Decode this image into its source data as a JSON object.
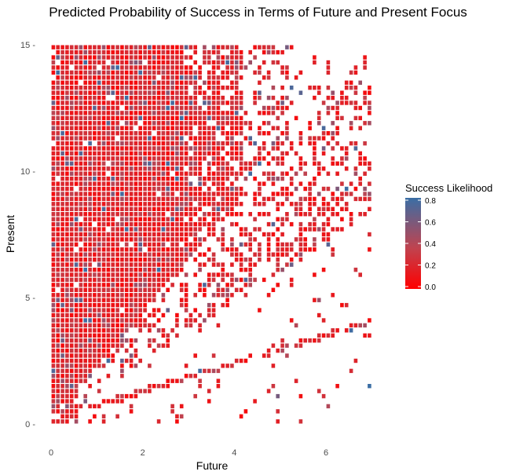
{
  "chart_data": {
    "type": "heatmap",
    "title": "Predicted Probability of Success in Terms of Future and Present Focus",
    "xlabel": "Future",
    "ylabel": "Present",
    "xlim": [
      -0.1,
      7.0
    ],
    "ylim": [
      -0.3,
      15.2
    ],
    "x_ticks": [
      0,
      2,
      4,
      6
    ],
    "y_ticks": [
      0,
      5,
      10,
      15
    ],
    "x_tick_labels": [
      "0",
      "2",
      "4",
      "6"
    ],
    "y_tick_labels": [
      "0 -",
      "5 -",
      "10 -",
      "15 -"
    ],
    "grid": false,
    "cell_width": 0.1,
    "cell_height": 0.2,
    "legend": {
      "title": "Success Likelihood",
      "position": "right",
      "ticks": [
        0.0,
        0.2,
        0.4,
        0.6,
        0.8
      ],
      "tick_labels": [
        "0.0",
        "0.2",
        "0.4",
        "0.6",
        "0.8"
      ],
      "color_low": "#ff0000",
      "color_mid": "#c0434f",
      "color_high": "#3a6ea5",
      "range": [
        0.0,
        0.8
      ]
    },
    "density_description": "Cells are dense where Present >= Future*2; there is a diagonal band of cells along Present ≈ 0.55*Future+... with sparse cells elsewhere. Most cells have success likelihood 0.1–0.3 (red); scattered cells reach 0.5–0.8 (blue-grey).",
    "cells_seed": 7
  }
}
